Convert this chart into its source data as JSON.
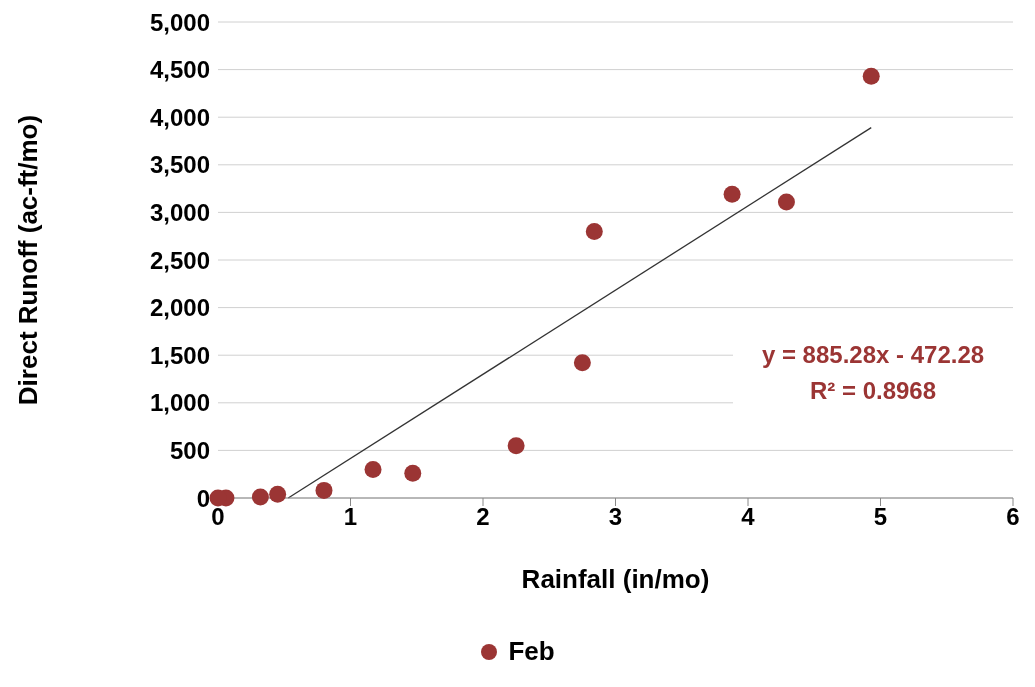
{
  "chart_data": {
    "type": "scatter",
    "xlabel": "Rainfall (in/mo)",
    "ylabel": "Direct Runoff (ac-ft/mo)",
    "xlim": [
      0,
      6
    ],
    "xticks": [
      0,
      1,
      2,
      3,
      4,
      5,
      6
    ],
    "ylim": [
      0,
      5000
    ],
    "yticks": [
      {
        "value": 0,
        "label": "0"
      },
      {
        "value": 500,
        "label": "500"
      },
      {
        "value": 1000,
        "label": "1,000"
      },
      {
        "value": 1500,
        "label": "1,500"
      },
      {
        "value": 2000,
        "label": "2,000"
      },
      {
        "value": 2500,
        "label": "2,500"
      },
      {
        "value": 3000,
        "label": "3,000"
      },
      {
        "value": 3500,
        "label": "3,500"
      },
      {
        "value": 4000,
        "label": "4,000"
      },
      {
        "value": 4500,
        "label": "4,500"
      },
      {
        "value": 5000,
        "label": "5,000"
      }
    ],
    "grid": "y",
    "legend": "bottom",
    "marker": "circle",
    "series": [
      {
        "name": "Feb",
        "color": "#9b3534",
        "x": [
          0,
          0.06,
          0.32,
          0.45,
          0.8,
          1.17,
          1.47,
          2.25,
          2.75,
          2.84,
          3.88,
          4.29,
          4.93
        ],
        "values": [
          0,
          0,
          10,
          40,
          80,
          300,
          260,
          550,
          1420,
          2800,
          3190,
          3110,
          4430
        ]
      },
      {
        "type": "line",
        "color": "#333333",
        "line_style": "solid",
        "marker": "none",
        "x": [
          0.53,
          4.93
        ],
        "values": [
          0,
          3890
        ]
      }
    ],
    "annotations": [
      "y = 885.28x - 472.28\nR² = 0.8968"
    ]
  }
}
